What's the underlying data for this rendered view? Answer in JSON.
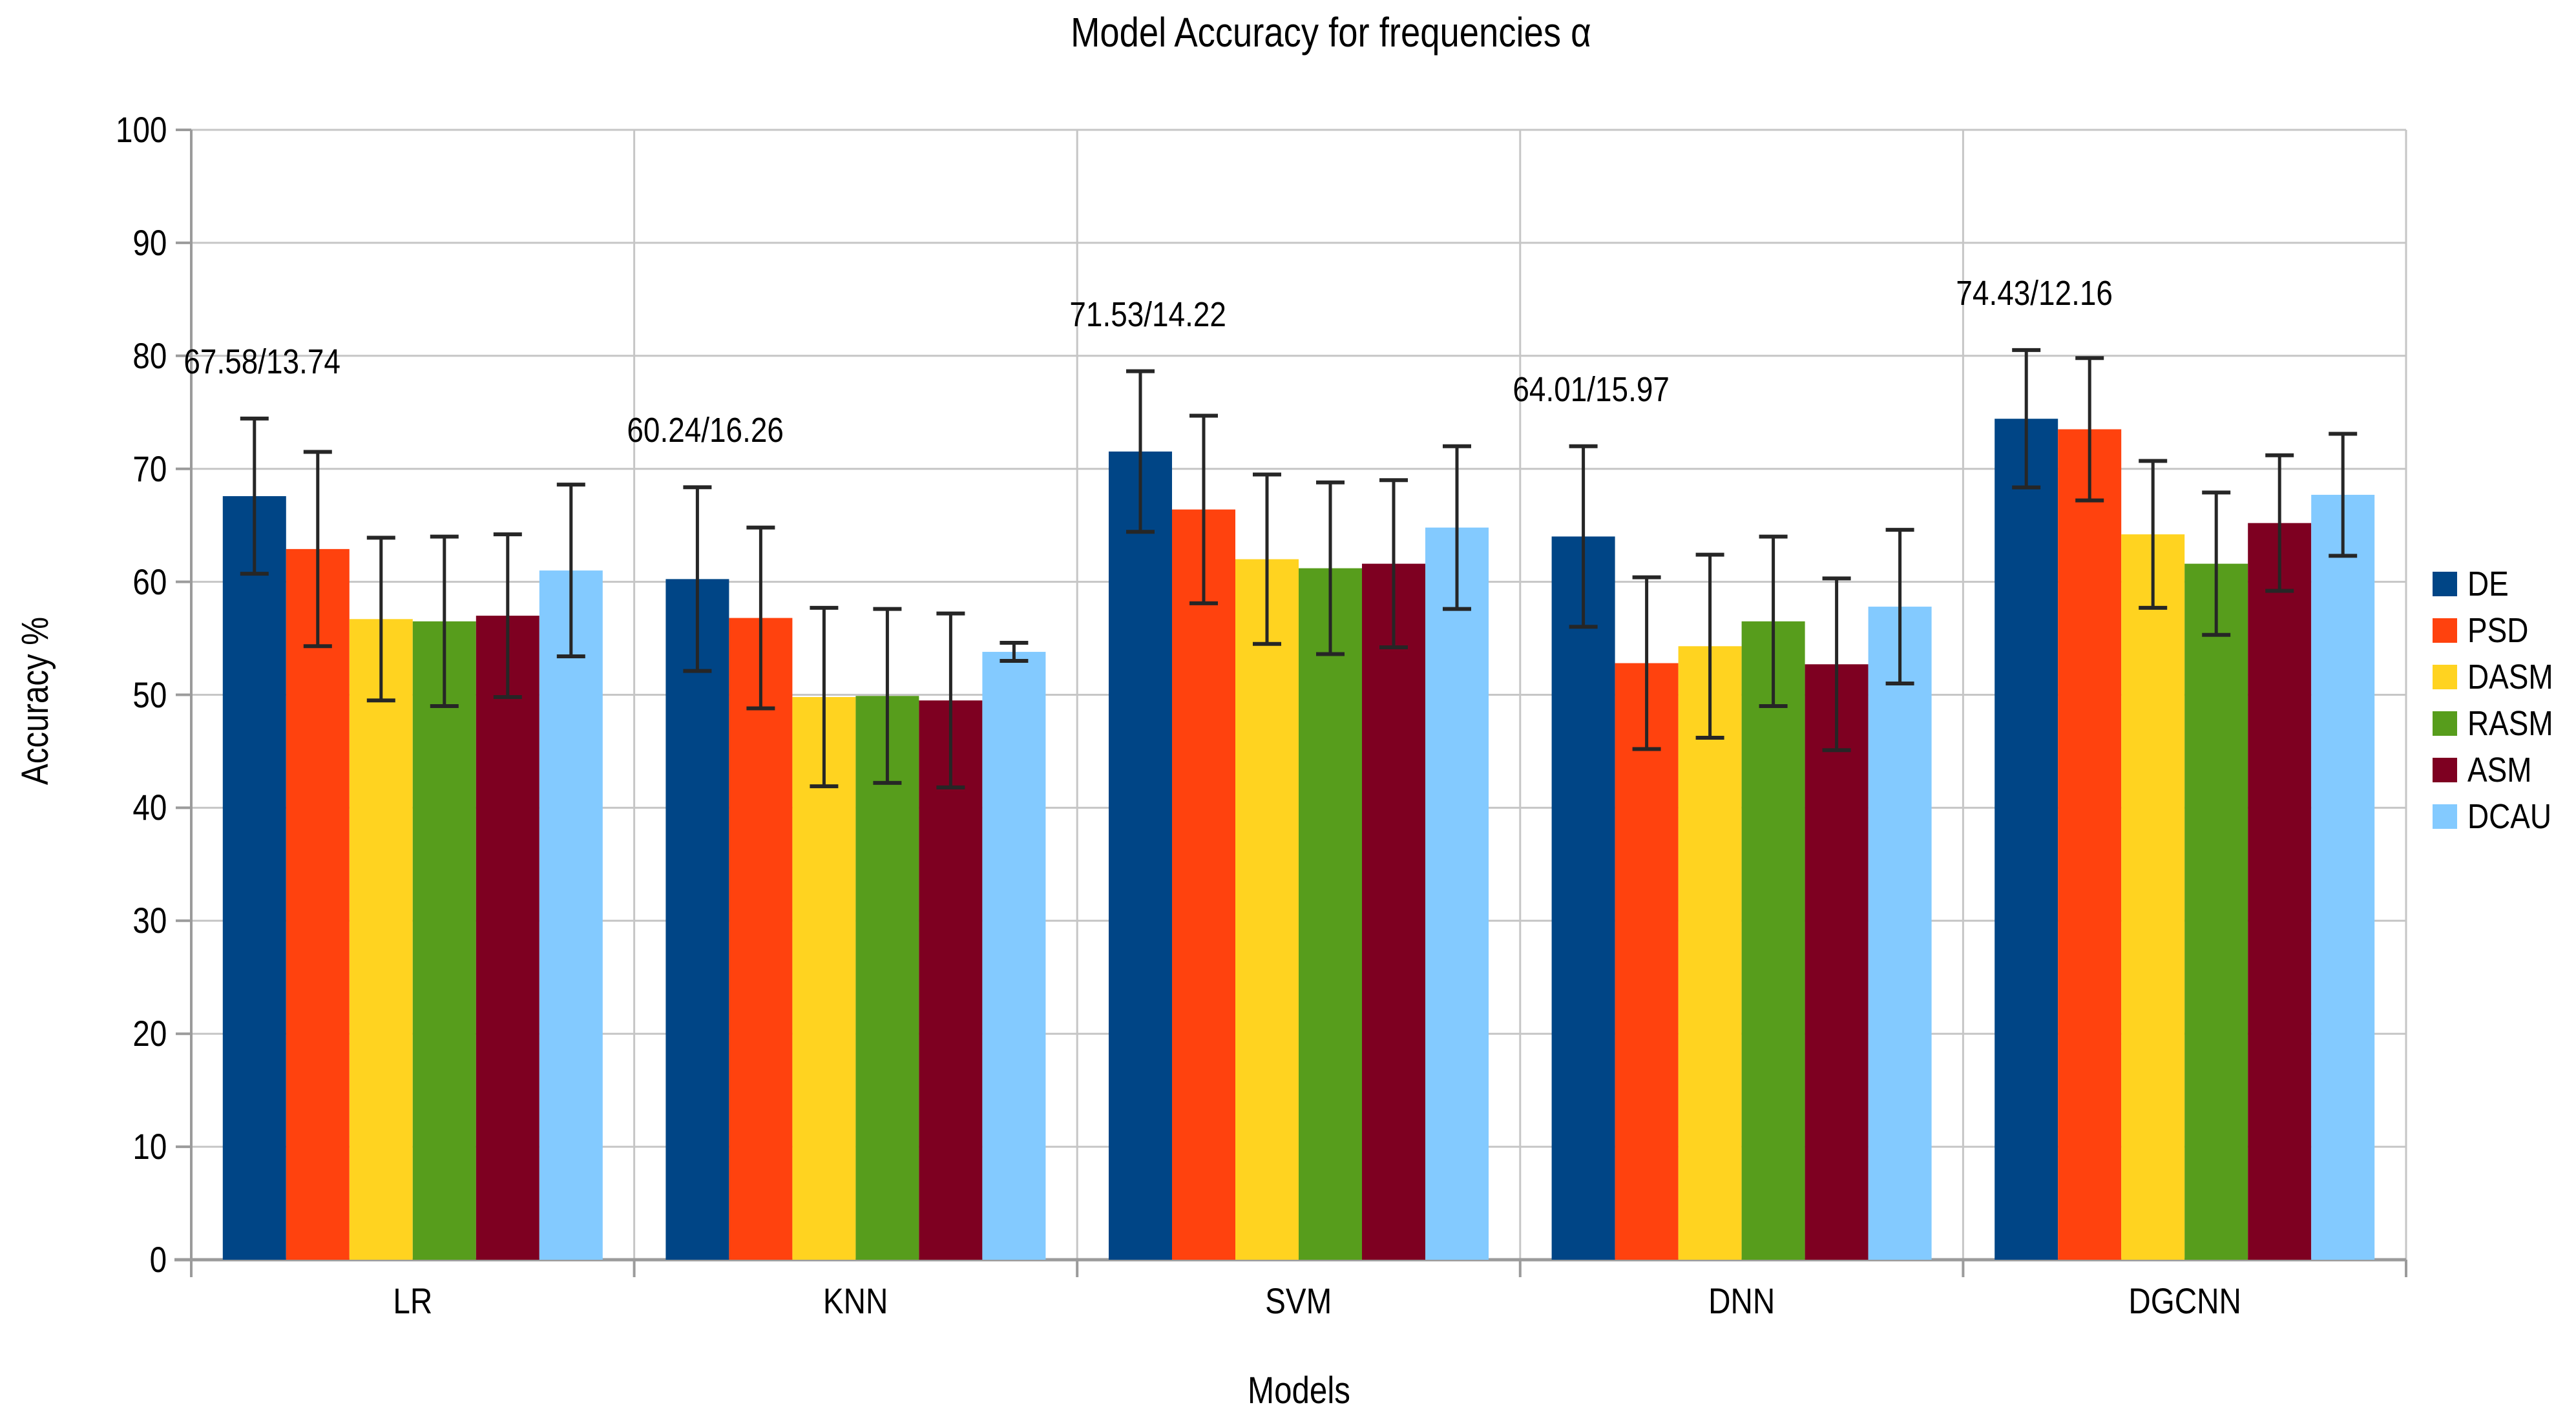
{
  "chart_data": {
    "type": "bar",
    "title": "Model Accuracy for frequencies α",
    "xlabel": "Models",
    "ylabel": "Accuracy %",
    "ylim": [
      0,
      100
    ],
    "yticks": [
      0,
      10,
      20,
      30,
      40,
      50,
      60,
      70,
      80,
      90,
      100
    ],
    "grid": true,
    "legend_position": "right",
    "error_bars": "mean ± std/2",
    "categories": [
      "LR",
      "KNN",
      "SVM",
      "DNN",
      "DGCNN"
    ],
    "series": [
      {
        "name": "DE",
        "color": "#004586",
        "values": [
          67.58,
          60.24,
          71.53,
          64.01,
          74.43
        ],
        "error_half": [
          6.87,
          8.13,
          7.11,
          7.99,
          6.08
        ]
      },
      {
        "name": "PSD",
        "color": "#FF420E",
        "values": [
          62.9,
          56.8,
          66.4,
          52.8,
          73.5
        ],
        "error_half": [
          8.6,
          8.0,
          8.3,
          7.6,
          6.3
        ]
      },
      {
        "name": "DASM",
        "color": "#FFD320",
        "values": [
          56.7,
          49.8,
          62.0,
          54.3,
          64.2
        ],
        "error_half": [
          7.2,
          7.9,
          7.5,
          8.1,
          6.5
        ]
      },
      {
        "name": "RASM",
        "color": "#579D1C",
        "values": [
          56.5,
          49.9,
          61.2,
          56.5,
          61.6
        ],
        "error_half": [
          7.5,
          7.7,
          7.6,
          7.5,
          6.3
        ]
      },
      {
        "name": "ASM",
        "color": "#7E0021",
        "values": [
          57.0,
          49.5,
          61.6,
          52.7,
          65.2
        ],
        "error_half": [
          7.2,
          7.7,
          7.4,
          7.6,
          6.0
        ]
      },
      {
        "name": "DCAU",
        "color": "#83CAFF",
        "values": [
          61.0,
          53.8,
          64.8,
          57.8,
          67.7
        ],
        "error_half": [
          7.6,
          0.8,
          7.2,
          6.8,
          5.4
        ]
      }
    ],
    "annotations": [
      {
        "category": "LR",
        "text": "67.58/13.74"
      },
      {
        "category": "KNN",
        "text": "60.24/16.26"
      },
      {
        "category": "SVM",
        "text": "71.53/14.22"
      },
      {
        "category": "DNN",
        "text": "64.01/15.97"
      },
      {
        "category": "DGCNN",
        "text": "74.43/12.16"
      }
    ],
    "colors": {
      "gridline": "#c6c6c6",
      "axis": "#9b9b9b",
      "error_bar": "#262626",
      "text": "#000000",
      "background": "#ffffff"
    }
  }
}
